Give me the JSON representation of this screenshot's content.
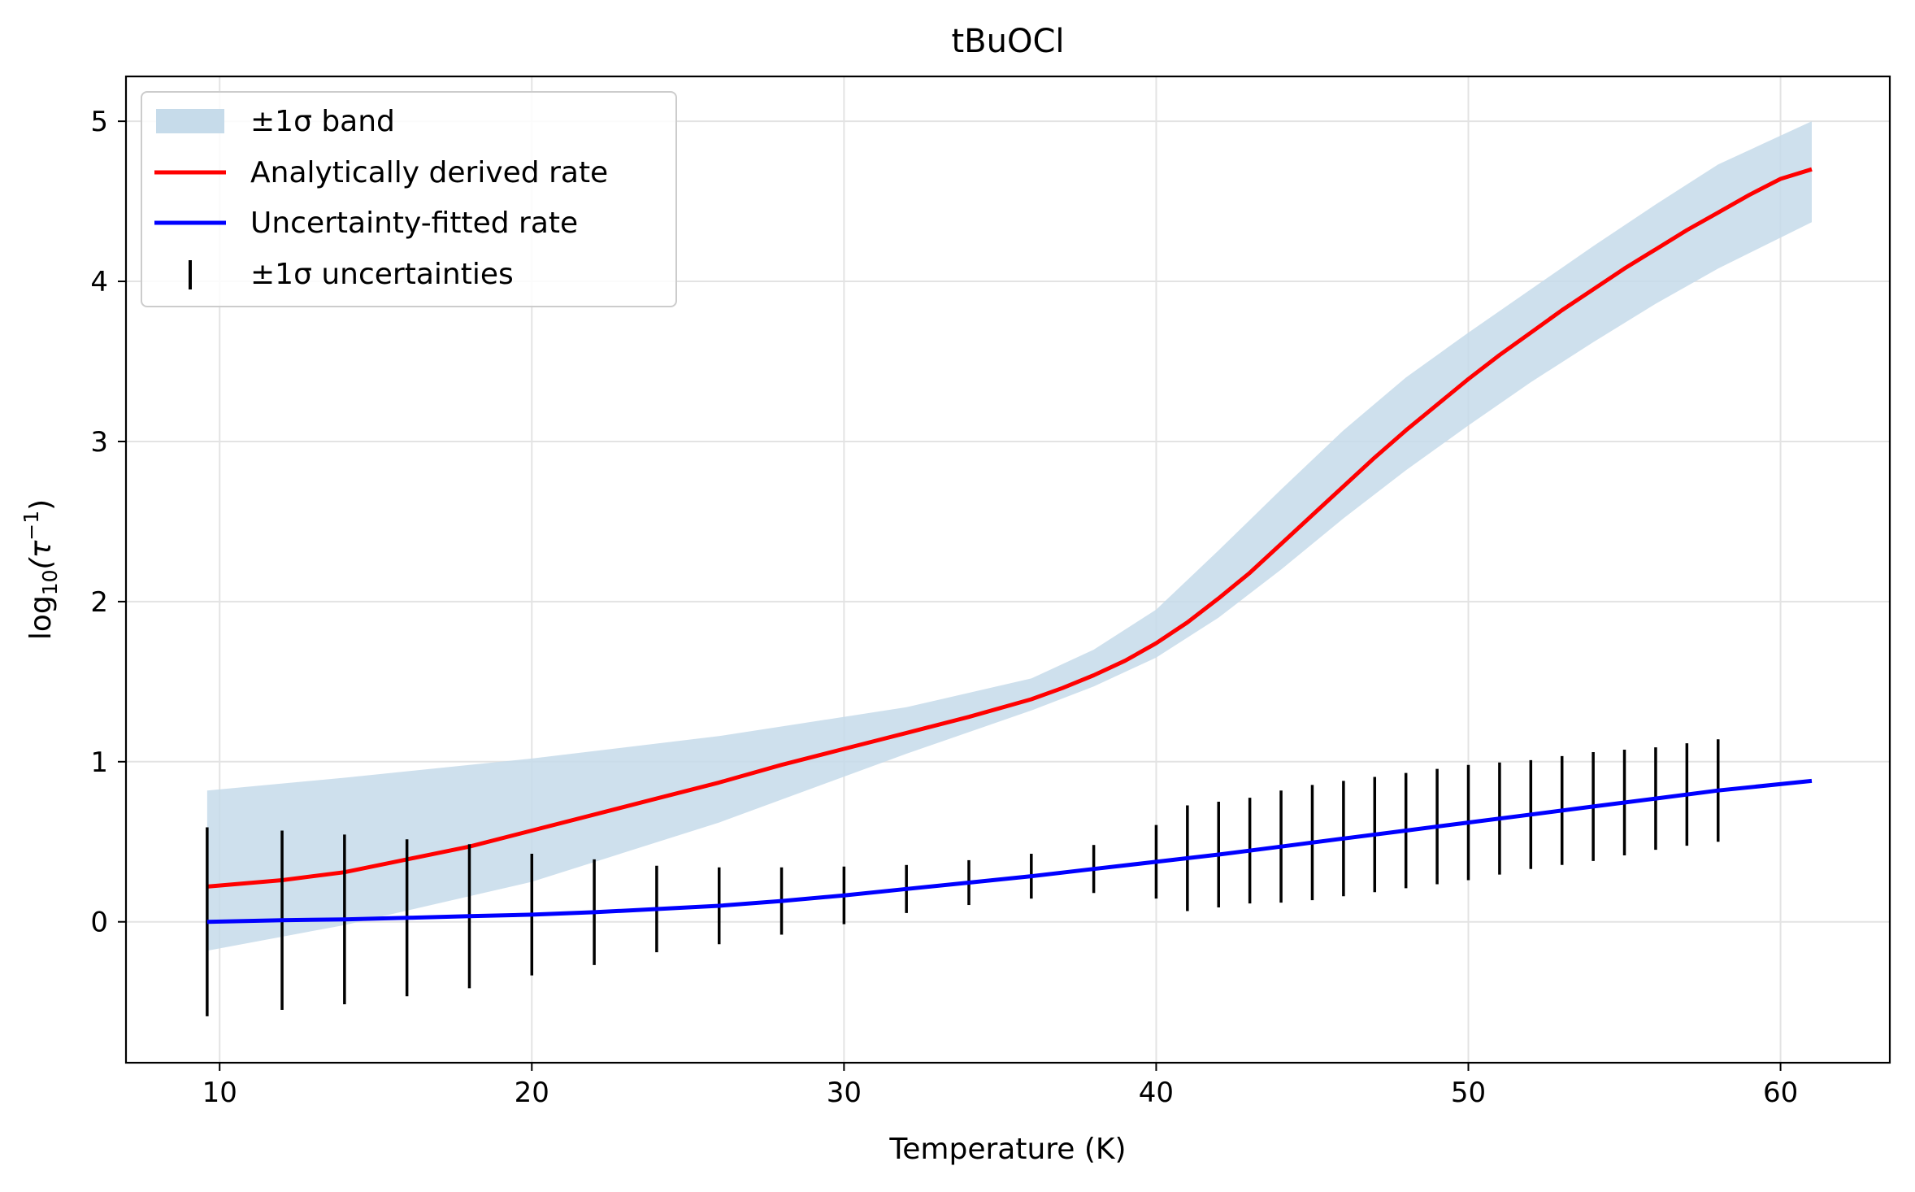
{
  "chart_data": {
    "type": "line",
    "title": "tBuOCl",
    "xlabel": "Temperature (K)",
    "ylabel_parts": {
      "base": "log",
      "sub": "10",
      "arg": "(τ",
      "sup": "−1",
      "close": ")"
    },
    "xlim": [
      7,
      63.5
    ],
    "ylim": [
      -0.88,
      5.28
    ],
    "xticks": [
      10,
      20,
      30,
      40,
      50,
      60
    ],
    "yticks": [
      0,
      1,
      2,
      3,
      4,
      5
    ],
    "grid": true,
    "legend_position": "upper-left",
    "legend": {
      "band": "±1σ band",
      "analytic": "Analytically derived rate",
      "fitted": "Uncertainty-fitted rate",
      "errorbars": "±1σ uncertainties"
    },
    "colors": {
      "band": "#c6dbea",
      "analytic": "#ff0000",
      "fitted": "#0000ff",
      "errorbars": "#000000"
    },
    "band": {
      "x": [
        9.6,
        14,
        20,
        26,
        32,
        36,
        38,
        40,
        42,
        44,
        46,
        48,
        50,
        52,
        54,
        56,
        58,
        61
      ],
      "lower": [
        -0.18,
        -0.02,
        0.25,
        0.62,
        1.05,
        1.32,
        1.47,
        1.65,
        1.9,
        2.2,
        2.52,
        2.82,
        3.1,
        3.37,
        3.62,
        3.86,
        4.08,
        4.37
      ],
      "upper": [
        0.82,
        0.9,
        1.02,
        1.16,
        1.34,
        1.52,
        1.7,
        1.95,
        2.32,
        2.7,
        3.07,
        3.4,
        3.68,
        3.95,
        4.22,
        4.48,
        4.73,
        5.0
      ]
    },
    "series": [
      {
        "name": "Analytically derived rate",
        "x": [
          9.6,
          12,
          14,
          16,
          18,
          20,
          22,
          24,
          26,
          28,
          30,
          32,
          34,
          36,
          37,
          38,
          39,
          40,
          41,
          42,
          43,
          44,
          45,
          46,
          47,
          48,
          49,
          50,
          51,
          52,
          53,
          54,
          55,
          56,
          57,
          58,
          59,
          60,
          61
        ],
        "y": [
          0.22,
          0.26,
          0.31,
          0.39,
          0.47,
          0.57,
          0.67,
          0.77,
          0.87,
          0.98,
          1.08,
          1.18,
          1.28,
          1.39,
          1.46,
          1.54,
          1.63,
          1.74,
          1.87,
          2.02,
          2.18,
          2.36,
          2.54,
          2.72,
          2.9,
          3.07,
          3.23,
          3.39,
          3.54,
          3.68,
          3.82,
          3.95,
          4.08,
          4.2,
          4.32,
          4.43,
          4.54,
          4.64,
          4.7
        ]
      },
      {
        "name": "Uncertainty-fitted rate",
        "x": [
          9.6,
          12,
          14,
          16,
          18,
          20,
          22,
          24,
          26,
          28,
          30,
          32,
          34,
          36,
          38,
          40,
          42,
          44,
          46,
          48,
          50,
          52,
          54,
          56,
          58,
          61
        ],
        "y": [
          0.0,
          0.01,
          0.015,
          0.025,
          0.035,
          0.045,
          0.06,
          0.08,
          0.1,
          0.13,
          0.165,
          0.205,
          0.245,
          0.285,
          0.33,
          0.375,
          0.42,
          0.47,
          0.52,
          0.57,
          0.62,
          0.67,
          0.72,
          0.77,
          0.82,
          0.88
        ]
      }
    ],
    "errorbars": {
      "x": [
        9.6,
        12,
        14,
        16,
        18,
        20,
        22,
        24,
        26,
        28,
        30,
        32,
        34,
        36,
        38,
        40,
        41,
        42,
        43,
        44,
        45,
        46,
        47,
        48,
        49,
        50,
        51,
        52,
        53,
        54,
        55,
        56,
        57,
        58
      ],
      "y": [
        0.0,
        0.01,
        0.015,
        0.025,
        0.035,
        0.045,
        0.06,
        0.08,
        0.1,
        0.13,
        0.165,
        0.205,
        0.245,
        0.285,
        0.33,
        0.375,
        0.397,
        0.42,
        0.445,
        0.47,
        0.495,
        0.52,
        0.545,
        0.57,
        0.595,
        0.62,
        0.645,
        0.67,
        0.695,
        0.72,
        0.745,
        0.77,
        0.795,
        0.82
      ],
      "err": [
        0.59,
        0.56,
        0.53,
        0.49,
        0.45,
        0.38,
        0.33,
        0.27,
        0.24,
        0.21,
        0.18,
        0.15,
        0.14,
        0.14,
        0.15,
        0.23,
        0.33,
        0.33,
        0.33,
        0.35,
        0.36,
        0.36,
        0.36,
        0.36,
        0.36,
        0.36,
        0.35,
        0.34,
        0.34,
        0.34,
        0.33,
        0.32,
        0.32,
        0.32
      ]
    }
  }
}
